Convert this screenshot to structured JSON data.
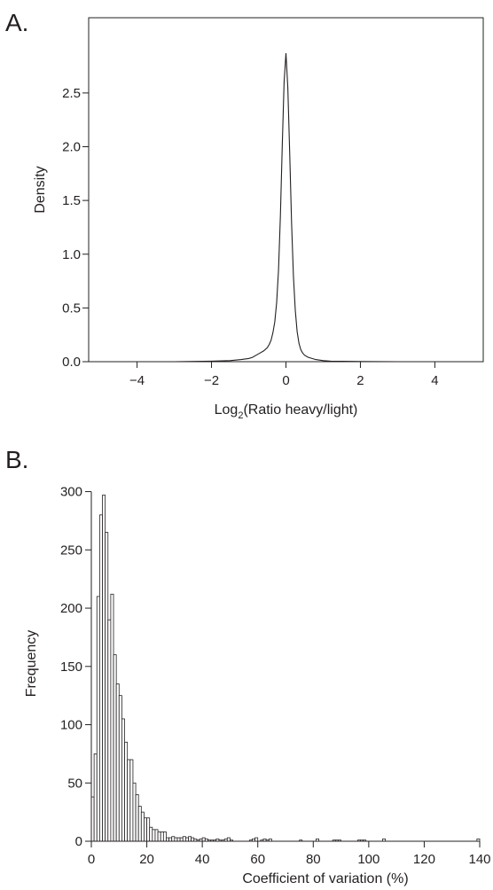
{
  "panels": {
    "a_label": "A.",
    "b_label": "B."
  },
  "chart_data": [
    {
      "type": "line",
      "xlabel": "Log",
      "xlabel_sub": "2",
      "xlabel_rest": "(Ratio heavy/light)",
      "ylabel": "Density",
      "xlim": [
        -5.3,
        5.3
      ],
      "ylim": [
        0,
        3.2
      ],
      "xticks": [
        -4,
        -2,
        0,
        2,
        4
      ],
      "xticklabels": [
        "−4",
        "−2",
        "0",
        "2",
        "4"
      ],
      "yticks": [
        0,
        0.5,
        1.0,
        1.5,
        2.0,
        2.5
      ],
      "yticklabels": [
        "0.0",
        "0.5",
        "1.0",
        "1.5",
        "2.0",
        "2.5"
      ],
      "grid": false,
      "series": [
        {
          "x": [
            -5.3,
            -4.0,
            -3.0,
            -2.0,
            -1.5,
            -1.2,
            -1.0,
            -0.9,
            -0.8,
            -0.7,
            -0.6,
            -0.5,
            -0.45,
            -0.4,
            -0.35,
            -0.3,
            -0.25,
            -0.2,
            -0.15,
            -0.1,
            -0.05,
            0.0,
            0.05,
            0.1,
            0.15,
            0.2,
            0.25,
            0.3,
            0.35,
            0.4,
            0.45,
            0.5,
            0.6,
            0.7,
            0.8,
            1.0,
            1.2,
            1.5,
            2.0,
            3.0,
            4.0,
            5.3
          ],
          "y": [
            0.0,
            0.0,
            0.0,
            0.005,
            0.01,
            0.02,
            0.03,
            0.04,
            0.06,
            0.08,
            0.1,
            0.13,
            0.16,
            0.2,
            0.27,
            0.37,
            0.55,
            0.85,
            1.35,
            2.0,
            2.6,
            2.87,
            2.55,
            1.95,
            1.3,
            0.8,
            0.48,
            0.28,
            0.17,
            0.11,
            0.08,
            0.06,
            0.04,
            0.03,
            0.02,
            0.01,
            0.005,
            0.003,
            0.002,
            0.0,
            0.0,
            0.0
          ]
        }
      ]
    },
    {
      "type": "bar",
      "xlabel": "Coefficient of variation (%)",
      "ylabel": "Frequency",
      "xlim": [
        0,
        140
      ],
      "ylim": [
        0,
        305
      ],
      "xticks": [
        0,
        20,
        40,
        60,
        80,
        100,
        120,
        140
      ],
      "xticklabels": [
        "0",
        "20",
        "40",
        "60",
        "80",
        "100",
        "120",
        "140"
      ],
      "yticks": [
        0,
        50,
        100,
        150,
        200,
        250,
        300
      ],
      "yticklabels": [
        "0",
        "50",
        "100",
        "150",
        "200",
        "250",
        "300"
      ],
      "grid": false,
      "bin_width": 1,
      "bin_starts": [
        0,
        1,
        2,
        3,
        4,
        5,
        6,
        7,
        8,
        9,
        10,
        11,
        12,
        13,
        14,
        15,
        16,
        17,
        18,
        19,
        20,
        21,
        22,
        23,
        24,
        25,
        26,
        27,
        28,
        29,
        30,
        31,
        32,
        33,
        34,
        35,
        36,
        37,
        38,
        39,
        40,
        41,
        42,
        43,
        44,
        45,
        46,
        47,
        48,
        49,
        50,
        57,
        58,
        59,
        61,
        62,
        63,
        64,
        75,
        81,
        87,
        88,
        89,
        96,
        97,
        98,
        105,
        139
      ],
      "values": [
        38,
        75,
        210,
        280,
        297,
        265,
        190,
        212,
        160,
        135,
        125,
        105,
        85,
        70,
        70,
        50,
        40,
        30,
        25,
        20,
        20,
        12,
        10,
        10,
        8,
        8,
        8,
        3,
        3,
        4,
        3,
        3,
        3,
        4,
        3,
        4,
        3,
        2,
        1,
        2,
        3,
        2,
        1,
        1,
        1,
        2,
        1,
        1,
        2,
        3,
        1,
        1,
        2,
        3,
        1,
        2,
        1,
        2,
        1,
        2,
        1,
        1,
        1,
        1,
        1,
        1,
        2,
        2
      ]
    }
  ]
}
